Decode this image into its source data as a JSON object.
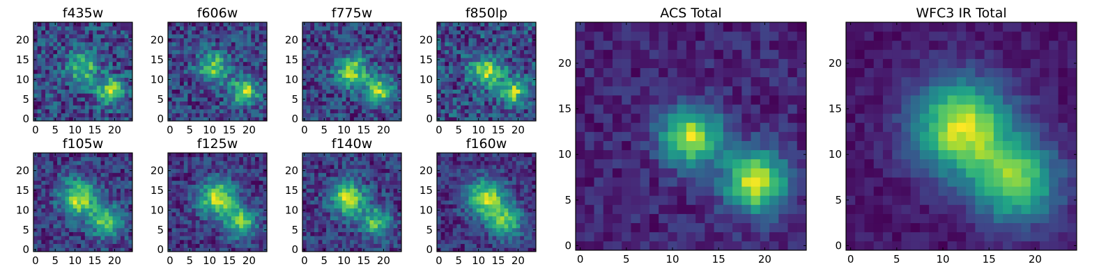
{
  "chart_data": [
    {
      "type": "heatmap",
      "title": "f435w",
      "colormap": "viridis",
      "grid": false,
      "xticks": [
        0,
        5,
        10,
        15,
        20
      ],
      "yticks": [
        0,
        5,
        10,
        15,
        20
      ],
      "xlim": [
        0,
        24
      ],
      "ylim": [
        0,
        24
      ],
      "peaks": [
        [
          19,
          7,
          1.0,
          2.4
        ],
        [
          12,
          13,
          0.8,
          2.8
        ]
      ],
      "noise": 0.35
    },
    {
      "type": "heatmap",
      "title": "f606w",
      "colormap": "viridis",
      "grid": false,
      "xticks": [
        0,
        5,
        10,
        15,
        20
      ],
      "yticks": [
        0,
        5,
        10,
        15,
        20
      ],
      "xlim": [
        0,
        24
      ],
      "ylim": [
        0,
        24
      ],
      "peaks": [
        [
          19,
          7,
          1.0,
          2.4
        ],
        [
          11,
          13,
          0.85,
          2.8
        ]
      ],
      "noise": 0.3
    },
    {
      "type": "heatmap",
      "title": "f775w",
      "colormap": "viridis",
      "grid": false,
      "xticks": [
        0,
        5,
        10,
        15,
        20
      ],
      "yticks": [
        0,
        5,
        10,
        15,
        20
      ],
      "xlim": [
        0,
        24
      ],
      "ylim": [
        0,
        24
      ],
      "peaks": [
        [
          19,
          7,
          0.95,
          2.4
        ],
        [
          12,
          12,
          0.9,
          2.8
        ]
      ],
      "noise": 0.28
    },
    {
      "type": "heatmap",
      "title": "f850lp",
      "colormap": "viridis",
      "grid": false,
      "xticks": [
        0,
        5,
        10,
        15,
        20
      ],
      "yticks": [
        0,
        5,
        10,
        15,
        20
      ],
      "xlim": [
        0,
        24
      ],
      "ylim": [
        0,
        24
      ],
      "peaks": [
        [
          19,
          7,
          0.9,
          2.4
        ],
        [
          12,
          12,
          0.85,
          2.8
        ]
      ],
      "noise": 0.35
    },
    {
      "type": "heatmap",
      "title": "f105w",
      "colormap": "viridis",
      "grid": false,
      "xticks": [
        0,
        5,
        10,
        15,
        20
      ],
      "yticks": [
        0,
        5,
        10,
        15,
        20
      ],
      "xlim": [
        0,
        24
      ],
      "ylim": [
        0,
        24
      ],
      "peaks": [
        [
          11,
          13,
          1.0,
          3.2
        ],
        [
          18,
          7,
          0.8,
          2.8
        ]
      ],
      "noise": 0.25
    },
    {
      "type": "heatmap",
      "title": "f125w",
      "colormap": "viridis",
      "grid": false,
      "xticks": [
        0,
        5,
        10,
        15,
        20
      ],
      "yticks": [
        0,
        5,
        10,
        15,
        20
      ],
      "xlim": [
        0,
        24
      ],
      "ylim": [
        0,
        24
      ],
      "peaks": [
        [
          12,
          13,
          1.0,
          3.2
        ],
        [
          18,
          7,
          0.8,
          2.8
        ]
      ],
      "noise": 0.22
    },
    {
      "type": "heatmap",
      "title": "f140w",
      "colormap": "viridis",
      "grid": false,
      "xticks": [
        0,
        5,
        10,
        15,
        20
      ],
      "yticks": [
        0,
        5,
        10,
        15,
        20
      ],
      "xlim": [
        0,
        24
      ],
      "ylim": [
        0,
        24
      ],
      "peaks": [
        [
          11,
          13,
          1.0,
          3.0
        ],
        [
          18,
          7,
          0.75,
          2.8
        ]
      ],
      "noise": 0.25
    },
    {
      "type": "heatmap",
      "title": "f160w",
      "colormap": "viridis",
      "grid": false,
      "xticks": [
        0,
        5,
        10,
        15,
        20
      ],
      "yticks": [
        0,
        5,
        10,
        15,
        20
      ],
      "xlim": [
        0,
        24
      ],
      "ylim": [
        0,
        24
      ],
      "peaks": [
        [
          12,
          13,
          1.0,
          3.4
        ],
        [
          17,
          7,
          0.75,
          3.0
        ]
      ],
      "noise": 0.2
    },
    {
      "type": "heatmap",
      "title": "ACS Total",
      "colormap": "viridis",
      "grid": false,
      "xticks": [
        0,
        5,
        10,
        15,
        20
      ],
      "yticks": [
        0,
        5,
        10,
        15,
        20
      ],
      "xlim": [
        0,
        24
      ],
      "ylim": [
        0,
        24
      ],
      "peaks": [
        [
          19,
          7,
          1.0,
          2.4
        ],
        [
          12,
          12,
          0.95,
          2.3
        ]
      ],
      "noise": 0.12
    },
    {
      "type": "heatmap",
      "title": "WFC3 IR Total",
      "colormap": "viridis",
      "grid": false,
      "xticks": [
        0,
        5,
        10,
        15,
        20
      ],
      "yticks": [
        0,
        5,
        10,
        15,
        20
      ],
      "xlim": [
        0,
        24
      ],
      "ylim": [
        0,
        24
      ],
      "peaks": [
        [
          12,
          13,
          1.0,
          3.6
        ],
        [
          18,
          7,
          0.8,
          3.2
        ]
      ],
      "noise": 0.08
    }
  ]
}
